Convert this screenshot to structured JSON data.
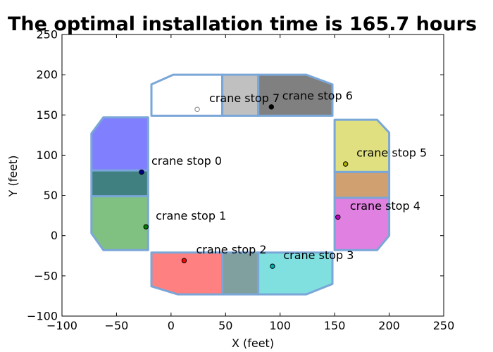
{
  "chart_data": {
    "type": "scatter",
    "title": "The optimal installation time is  165.7 hours",
    "xlabel": "X (feet)",
    "ylabel": "Y (feet)",
    "xlim": [
      -100,
      250
    ],
    "ylim": [
      -100,
      250
    ],
    "xticks": [
      -100,
      -50,
      0,
      50,
      100,
      150,
      200,
      250
    ],
    "yticks": [
      -100,
      -50,
      0,
      50,
      100,
      150,
      200,
      250
    ],
    "xtick_labels": [
      "−100",
      "−50",
      "0",
      "50",
      "100",
      "150",
      "200",
      "250"
    ],
    "ytick_labels": [
      "−100",
      "−50",
      "0",
      "50",
      "100",
      "150",
      "200",
      "250"
    ],
    "grid": false,
    "zones": [
      {
        "color": "#8080ff",
        "points": [
          [
            -73,
            127
          ],
          [
            -62,
            147
          ],
          [
            -21,
            147
          ],
          [
            -21,
            81
          ],
          [
            -73,
            81
          ]
        ]
      },
      {
        "color": "#408080",
        "points": [
          [
            -73,
            81
          ],
          [
            -21,
            81
          ],
          [
            -21,
            49
          ],
          [
            -73,
            49
          ]
        ]
      },
      {
        "color": "#80c080",
        "points": [
          [
            -73,
            49
          ],
          [
            -21,
            49
          ],
          [
            -21,
            -18
          ],
          [
            -62,
            -18
          ],
          [
            -73,
            3
          ]
        ]
      },
      {
        "color": "#ff8080",
        "points": [
          [
            -18,
            -21
          ],
          [
            47,
            -21
          ],
          [
            47,
            -73
          ],
          [
            6,
            -73
          ],
          [
            -18,
            -63
          ]
        ]
      },
      {
        "color": "#80a0a0",
        "points": [
          [
            47,
            -21
          ],
          [
            80,
            -21
          ],
          [
            80,
            -73
          ],
          [
            47,
            -73
          ]
        ]
      },
      {
        "color": "#80e0e0",
        "points": [
          [
            80,
            -21
          ],
          [
            148,
            -21
          ],
          [
            148,
            -60
          ],
          [
            124,
            -73
          ],
          [
            80,
            -73
          ]
        ]
      },
      {
        "color": "#e0e080",
        "points": [
          [
            150,
            144
          ],
          [
            189,
            144
          ],
          [
            200,
            128
          ],
          [
            200,
            79
          ],
          [
            150,
            79
          ]
        ]
      },
      {
        "color": "#d0a070",
        "points": [
          [
            150,
            79
          ],
          [
            200,
            79
          ],
          [
            200,
            47
          ],
          [
            150,
            47
          ]
        ]
      },
      {
        "color": "#e080e0",
        "points": [
          [
            150,
            47
          ],
          [
            200,
            47
          ],
          [
            200,
            0
          ],
          [
            189,
            -18
          ],
          [
            150,
            -18
          ]
        ]
      },
      {
        "color": "#ffffff",
        "points": [
          [
            -18,
            188
          ],
          [
            2,
            200
          ],
          [
            47,
            200
          ],
          [
            47,
            149
          ],
          [
            -18,
            149
          ]
        ]
      },
      {
        "color": "#c0c0c0",
        "points": [
          [
            47,
            200
          ],
          [
            80,
            200
          ],
          [
            80,
            149
          ],
          [
            47,
            149
          ]
        ]
      },
      {
        "color": "#808080",
        "points": [
          [
            80,
            200
          ],
          [
            124,
            200
          ],
          [
            148,
            188
          ],
          [
            148,
            149
          ],
          [
            80,
            149
          ]
        ]
      }
    ],
    "series": [
      {
        "label": "crane stop 0",
        "x": -27,
        "y": 79,
        "color": "#000080",
        "hollow": false,
        "label_x": -18,
        "label_y": 88
      },
      {
        "label": "crane stop 1",
        "x": -23,
        "y": 11,
        "color": "#008000",
        "hollow": false,
        "label_x": -14,
        "label_y": 20
      },
      {
        "label": "crane stop 2",
        "x": 12,
        "y": -31,
        "color": "#ff0000",
        "hollow": false,
        "label_x": 23,
        "label_y": -22
      },
      {
        "label": "crane stop 3",
        "x": 93,
        "y": -38,
        "color": "#00b0b0",
        "hollow": false,
        "label_x": 103,
        "label_y": -29
      },
      {
        "label": "crane stop 4",
        "x": 153,
        "y": 23,
        "color": "#c000c0",
        "hollow": false,
        "label_x": 164,
        "label_y": 32
      },
      {
        "label": "crane stop 5",
        "x": 160,
        "y": 89,
        "color": "#b0b000",
        "hollow": false,
        "label_x": 170,
        "label_y": 98
      },
      {
        "label": "crane stop 6",
        "x": 92,
        "y": 160,
        "color": "#000000",
        "hollow": false,
        "label_x": 102,
        "label_y": 169
      },
      {
        "label": "crane stop 7",
        "x": 24,
        "y": 157,
        "color": "#808080",
        "hollow": true,
        "label_x": 35,
        "label_y": 166
      }
    ]
  }
}
